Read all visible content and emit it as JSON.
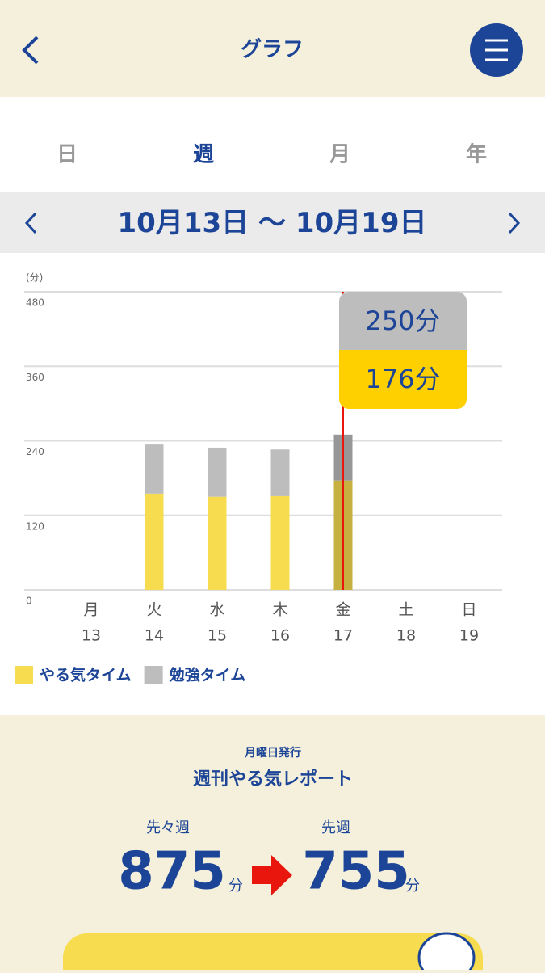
{
  "header": {
    "title": "グラフ"
  },
  "tabs": [
    "日",
    "週",
    "月",
    "年"
  ],
  "range": {
    "start": "10月13日",
    "sep": "〜",
    "end": "10月19日"
  },
  "chart_data": {
    "type": "bar",
    "stacked": true,
    "y_label": "(分)",
    "categories": [
      "月",
      "火",
      "水",
      "木",
      "金",
      "土",
      "日"
    ],
    "dates": [
      "13",
      "14",
      "15",
      "16",
      "17",
      "18",
      "19"
    ],
    "series": [
      {
        "name": "やる気タイム",
        "color": "#f7dc4f",
        "values": [
          0,
          155,
          150,
          151,
          176,
          0,
          0
        ]
      },
      {
        "name": "勉強タイム",
        "color": "#bdbdbd",
        "values": [
          0,
          79,
          79,
          75,
          74,
          0,
          0
        ]
      }
    ],
    "ylim": [
      0,
      480
    ],
    "yticks": [
      0,
      120,
      240,
      360,
      480
    ],
    "grid": true,
    "tooltip": {
      "total": "250分",
      "motivation": "176分"
    }
  },
  "report": {
    "note": "月曜日発行",
    "title": "週刊やる気レポート",
    "prev_label": "先々週",
    "last_label": "先週",
    "prev": 875,
    "last": 755,
    "unit": "分"
  }
}
